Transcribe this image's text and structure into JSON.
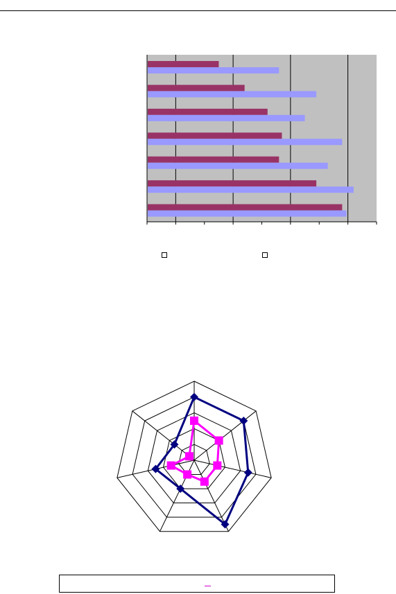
{
  "chart_data": [
    {
      "type": "bar",
      "orientation": "horizontal",
      "categories": [
        "",
        "",
        "",
        "",
        "",
        "",
        ""
      ],
      "xlim": [
        0,
        8
      ],
      "grid": true,
      "legend_placement": "bottom",
      "series": [
        {
          "values": [
            2.5,
            3.4,
            4.2,
            4.7,
            4.6,
            5.9,
            6.8
          ],
          "color": "#993366"
        },
        {
          "values": [
            4.6,
            5.9,
            5.5,
            6.8,
            6.3,
            7.2,
            6.95
          ],
          "color": "#9999ff"
        }
      ]
    },
    {
      "type": "radar",
      "axes": 7,
      "rlim": [
        0,
        5
      ],
      "grid": true,
      "series": [
        {
          "values": [
            4,
            4,
            3.5,
            4.5,
            2,
            2.5,
            1.6
          ],
          "color": "#000080",
          "marker": "diamond"
        },
        {
          "values": [
            2.5,
            2,
            1.5,
            1.5,
            1,
            1.5,
            0.4
          ],
          "color": "#ff00ff",
          "marker": "square"
        }
      ]
    }
  ]
}
